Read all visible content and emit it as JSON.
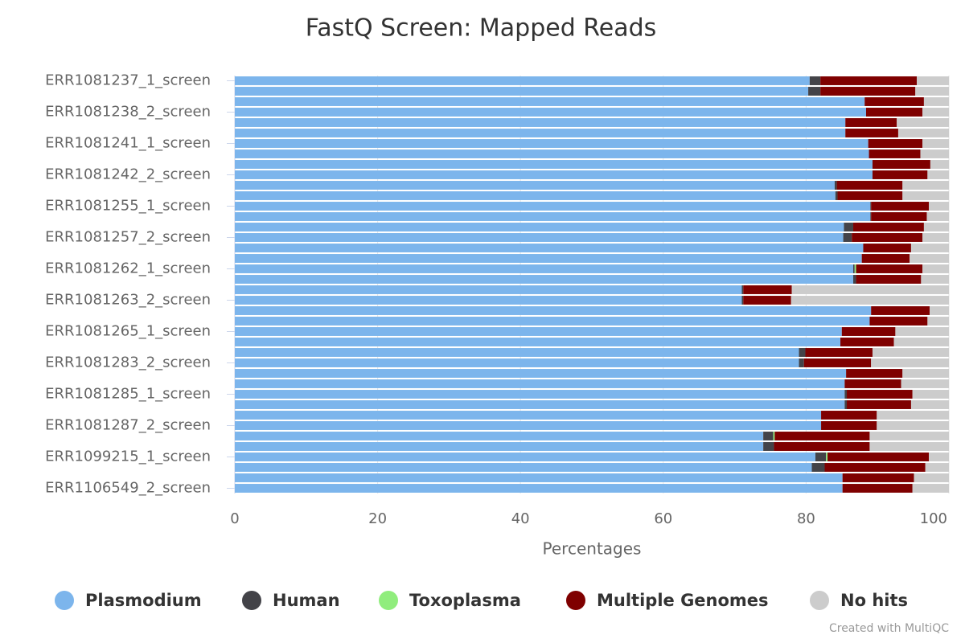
{
  "chart_data": {
    "type": "stacked_bar_horizontal",
    "title": "FastQ Screen: Mapped Reads",
    "x_label": "Percentages",
    "credit": "Created with MultiQC",
    "categories": [
      "ERR1081237_1_screen",
      null,
      null,
      "ERR1081238_2_screen",
      null,
      null,
      "ERR1081241_1_screen",
      null,
      null,
      "ERR1081242_2_screen",
      null,
      null,
      "ERR1081255_1_screen",
      null,
      null,
      "ERR1081257_2_screen",
      null,
      null,
      "ERR1081262_1_screen",
      null,
      null,
      "ERR1081263_2_screen",
      null,
      null,
      "ERR1081265_1_screen",
      null,
      null,
      "ERR1081283_2_screen",
      null,
      null,
      "ERR1081285_1_screen",
      null,
      null,
      "ERR1081287_2_screen",
      null,
      null,
      "ERR1099215_1_screen",
      null,
      null,
      "ERR1106549_2_screen"
    ],
    "series": [
      {
        "name": "Plasmodium",
        "color": "#7cb5ec",
        "values": [
          80.5,
          80.3,
          88.2,
          88.4,
          85.5,
          85.5,
          88.7,
          88.8,
          89.3,
          89.3,
          84,
          84.1,
          89,
          89,
          85.3,
          85.2,
          88,
          87.8,
          86.6,
          86.6,
          71,
          71,
          89.1,
          88.9,
          85,
          84.8,
          79,
          79,
          85.6,
          85.4,
          85.4,
          85.4,
          82.1,
          82.1,
          74,
          74,
          81.3,
          80.8,
          85.1,
          85.1
        ]
      },
      {
        "name": "Human",
        "color": "#434348",
        "values": [
          1.5,
          1.7,
          0,
          0,
          0,
          0,
          0,
          0,
          0,
          0,
          0.3,
          0.3,
          0.1,
          0.1,
          1.3,
          1.2,
          0,
          0,
          0.2,
          0.4,
          0.2,
          0.2,
          0,
          0,
          0,
          0,
          0.9,
          0.7,
          0,
          0,
          0.3,
          0.3,
          0,
          0,
          1.4,
          1.5,
          1.5,
          1.8,
          0,
          0
        ]
      },
      {
        "name": "Toxoplasma",
        "color": "#90ed7d",
        "values": [
          0,
          0,
          0,
          0,
          0,
          0,
          0,
          0,
          0,
          0,
          0,
          0,
          0,
          0,
          0,
          0,
          0,
          0,
          0.2,
          0,
          0,
          0,
          0,
          0,
          0,
          0,
          0,
          0,
          0,
          0,
          0,
          0,
          0,
          0,
          0.2,
          0,
          0.2,
          0,
          0,
          0
        ]
      },
      {
        "name": "Multiple Genomes",
        "color": "#7f0000",
        "values": [
          13.5,
          13.3,
          8.3,
          7.9,
          7.2,
          7.4,
          7.6,
          7.2,
          8.1,
          7.7,
          9.2,
          9.1,
          8.1,
          7.8,
          9.9,
          9.9,
          6.7,
          6.7,
          9.3,
          9.1,
          6.8,
          6.7,
          8.2,
          8.1,
          7.5,
          7.5,
          9.4,
          9.4,
          7.9,
          7.9,
          9.2,
          9,
          7.8,
          7.8,
          13.3,
          13.4,
          14.2,
          14.1,
          10,
          9.8
        ]
      },
      {
        "name": "No hits",
        "color": "#cccccc",
        "values": [
          4.5,
          4.7,
          3.5,
          3.7,
          7.3,
          7.1,
          3.7,
          4,
          2.6,
          3,
          6.5,
          6.5,
          2.8,
          3.1,
          3.5,
          3.7,
          5.3,
          5.5,
          3.7,
          3.9,
          22,
          22.1,
          2.7,
          3,
          7.5,
          7.7,
          10.7,
          10.9,
          6.5,
          6.7,
          5.1,
          5.3,
          10.1,
          10.1,
          11.1,
          11.1,
          2.8,
          3.3,
          4.9,
          5.1
        ]
      }
    ],
    "xlim": [
      0,
      100
    ],
    "xticks": [
      0,
      20,
      40,
      60,
      80,
      100
    ],
    "grid": true,
    "legend": "bottom"
  }
}
